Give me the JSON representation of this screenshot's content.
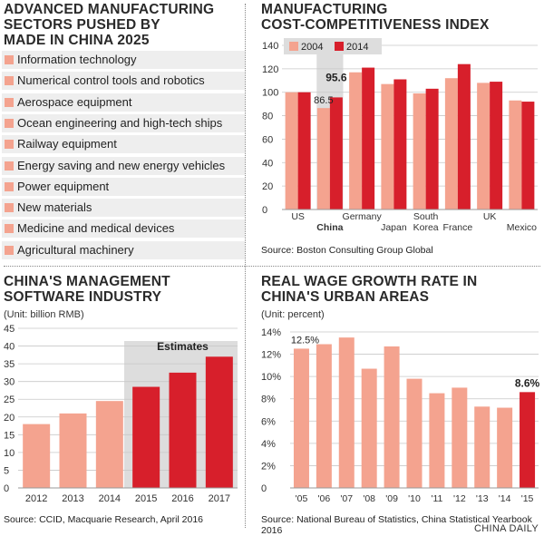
{
  "panel1": {
    "title_line1": "ADVANCED MANUFACTURING",
    "title_line2": "SECTORS PUSHED BY",
    "title_line3": "MADE IN CHINA 2025",
    "items": [
      "Information technology",
      "Numerical control tools and robotics",
      "Aerospace equipment",
      "Ocean engineering and high-tech ships",
      "Railway equipment",
      "Energy saving and new energy vehicles",
      "Power equipment",
      "New materials",
      "Medicine and medical devices",
      "Agricultural machinery"
    ]
  },
  "panel2": {
    "title_line1": "MANUFACTURING",
    "title_line2": "COST-COMPETITIVENESS INDEX",
    "source": "Source: Boston Consulting Group Global"
  },
  "panel3": {
    "title_line1": "CHINA'S MANAGEMENT",
    "title_line2": "SOFTWARE INDUSTRY",
    "unit": "(Unit: billion RMB)",
    "source": "Source: CCID, Macquarie Research, April 2016"
  },
  "panel4": {
    "title_line1": "REAL WAGE GROWTH RATE IN",
    "title_line2": "CHINA'S URBAN AREAS",
    "unit": "(Unit: percent)",
    "source": "Source: National Bureau of Statistics, China Statistical Yearbook 2016"
  },
  "footer": "CHINA DAILY",
  "colors": {
    "light": "#f4a38f",
    "dark": "#d71f2b",
    "shade": "#dddddd"
  },
  "chart_data": [
    {
      "type": "bar",
      "id": "cost_index",
      "categories": [
        "US",
        "China",
        "Germany",
        "Japan",
        "South\nKorea",
        "France",
        "UK",
        "Mexico"
      ],
      "series": [
        {
          "name": "2004",
          "values": [
            100,
            86.5,
            117,
            107,
            99,
            112,
            108,
            93
          ]
        },
        {
          "name": "2014",
          "values": [
            100,
            95.6,
            121,
            111,
            103,
            124,
            109,
            92
          ]
        }
      ],
      "data_labels": [
        {
          "series": "2004",
          "index": 1,
          "text": "86.5"
        },
        {
          "series": "2014",
          "index": 1,
          "text": "95.6"
        }
      ],
      "ylim": [
        0,
        140
      ],
      "yticks": [
        0,
        20,
        40,
        60,
        80,
        100,
        120,
        140
      ],
      "highlight_category": "China",
      "legend": "top-left",
      "grid": true
    },
    {
      "type": "bar",
      "id": "software_industry",
      "categories": [
        "2012",
        "2013",
        "2014",
        "2015",
        "2016",
        "2017"
      ],
      "values": [
        18,
        21,
        24.5,
        28.5,
        32.5,
        37
      ],
      "estimate_from_index": 3,
      "estimates_label": "Estimates",
      "ylim": [
        0,
        45
      ],
      "yticks": [
        0,
        5,
        10,
        15,
        20,
        25,
        30,
        35,
        40,
        45
      ],
      "grid": true
    },
    {
      "type": "bar",
      "id": "wage_growth",
      "categories": [
        "'05",
        "'06",
        "'07",
        "'08",
        "'09",
        "'10",
        "'11",
        "'12",
        "'13",
        "'14",
        "'15"
      ],
      "values": [
        12.5,
        12.9,
        13.5,
        10.7,
        12.7,
        9.8,
        8.5,
        9.0,
        7.3,
        7.2,
        8.6
      ],
      "highlight_index": 10,
      "data_labels": [
        {
          "index": 0,
          "text": "12.5%"
        },
        {
          "index": 10,
          "text": "8.6%"
        }
      ],
      "ylim": [
        0,
        14
      ],
      "yticks": [
        "0",
        "2%",
        "4%",
        "6%",
        "8%",
        "10%",
        "12%",
        "14%"
      ],
      "grid": true
    }
  ]
}
